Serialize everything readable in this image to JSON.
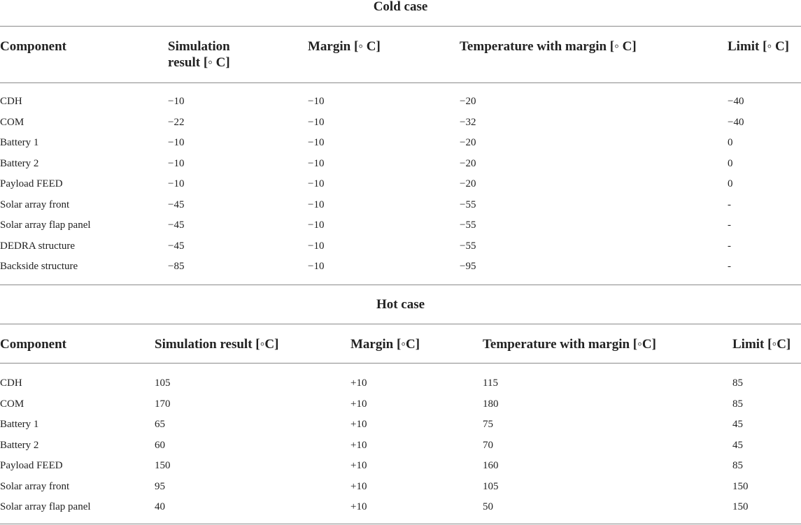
{
  "cold": {
    "title": "Cold case",
    "headers": {
      "component": "Component",
      "sim_line1": "Simulation",
      "sim_line2": "result [◦ C]",
      "margin": "Margin [◦ C]",
      "temp": "Temperature with margin [◦ C]",
      "limit": "Limit [◦ C]"
    },
    "rows": [
      {
        "component": "CDH",
        "sim": "−10",
        "margin": "−10",
        "temp": "−20",
        "limit": "−40"
      },
      {
        "component": "COM",
        "sim": "−22",
        "margin": "−10",
        "temp": "−32",
        "limit": "−40"
      },
      {
        "component": "Battery 1",
        "sim": "−10",
        "margin": "−10",
        "temp": "−20",
        "limit": "0"
      },
      {
        "component": "Battery 2",
        "sim": "−10",
        "margin": "−10",
        "temp": "−20",
        "limit": "0"
      },
      {
        "component": "Payload FEED",
        "sim": "−10",
        "margin": "−10",
        "temp": "−20",
        "limit": "0"
      },
      {
        "component": "Solar array front",
        "sim": "−45",
        "margin": "−10",
        "temp": "−55",
        "limit": "-"
      },
      {
        "component": "Solar array flap panel",
        "sim": "−45",
        "margin": "−10",
        "temp": "−55",
        "limit": "-"
      },
      {
        "component": "DEDRA structure",
        "sim": "−45",
        "margin": "−10",
        "temp": "−55",
        "limit": "-"
      },
      {
        "component": "Backside structure",
        "sim": "−85",
        "margin": "−10",
        "temp": "−95",
        "limit": "-"
      }
    ]
  },
  "hot": {
    "title": "Hot case",
    "headers": {
      "component": "Component",
      "sim": "Simulation result [◦C]",
      "margin": "Margin [◦C]",
      "temp": "Temperature with margin [◦C]",
      "limit": "Limit [◦C]"
    },
    "rows": [
      {
        "component": "CDH",
        "sim": "105",
        "margin": "+10",
        "temp": "115",
        "limit": "85"
      },
      {
        "component": "COM",
        "sim": "170",
        "margin": "+10",
        "temp": "180",
        "limit": "85"
      },
      {
        "component": "Battery 1",
        "sim": "65",
        "margin": "+10",
        "temp": "75",
        "limit": "45"
      },
      {
        "component": "Battery 2",
        "sim": "60",
        "margin": "+10",
        "temp": "70",
        "limit": "45"
      },
      {
        "component": "Payload FEED",
        "sim": "150",
        "margin": "+10",
        "temp": "160",
        "limit": "85"
      },
      {
        "component": "Solar array front",
        "sim": "95",
        "margin": "+10",
        "temp": "105",
        "limit": "150"
      },
      {
        "component": "Solar array flap panel",
        "sim": "40",
        "margin": "+10",
        "temp": "50",
        "limit": "150"
      }
    ]
  }
}
